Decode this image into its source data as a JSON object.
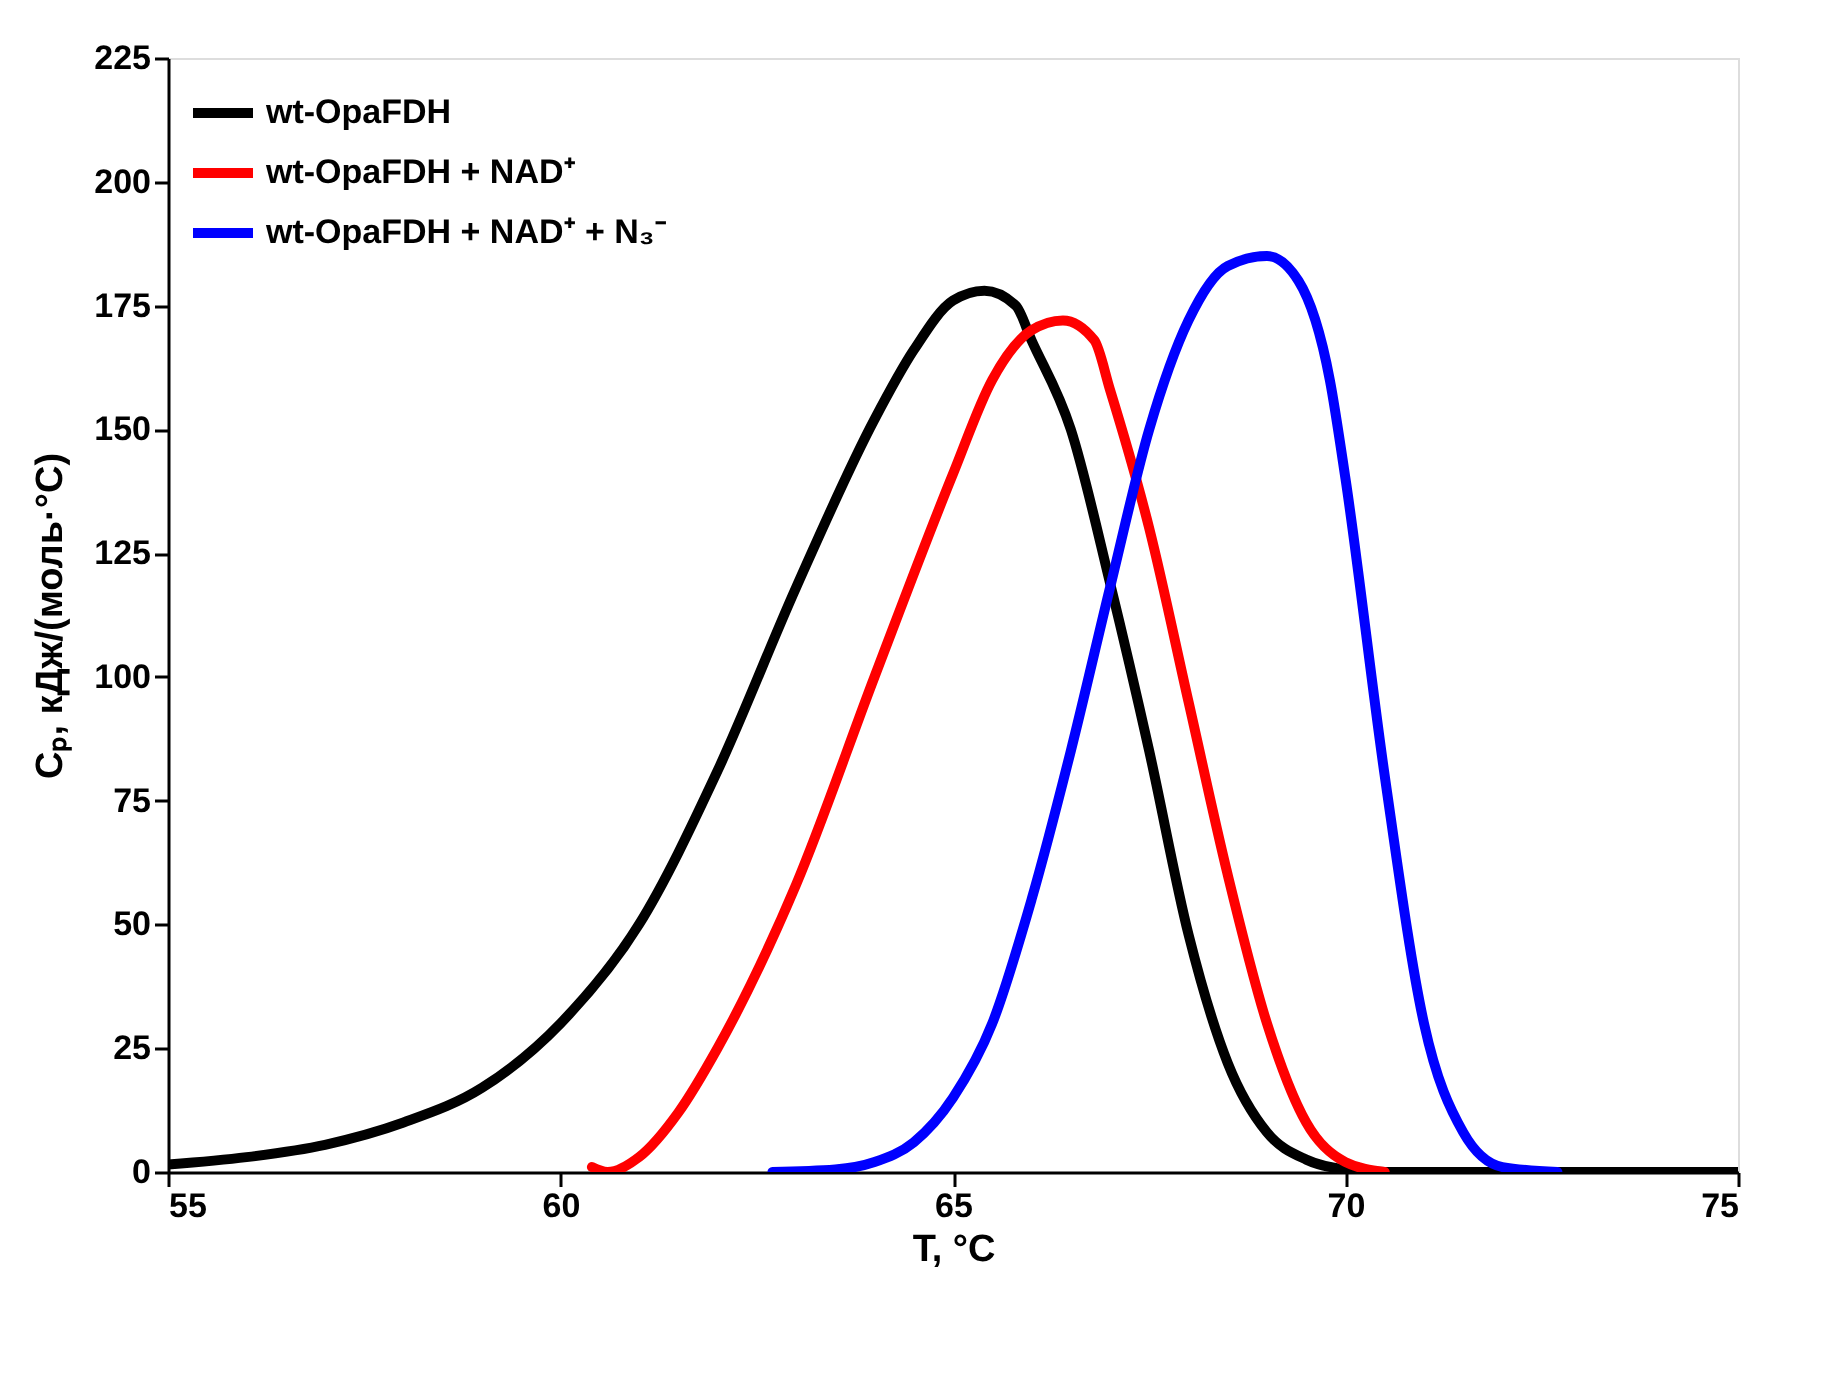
{
  "chart_data": {
    "type": "line",
    "xlabel": "T, °C",
    "ylabel": "Cₚ, кДж/(моль·°C)",
    "xlim": [
      55,
      75
    ],
    "ylim": [
      0,
      225
    ],
    "xticks": [
      55,
      60,
      65,
      70,
      75
    ],
    "yticks": [
      0,
      25,
      50,
      75,
      100,
      125,
      150,
      175,
      200,
      225
    ],
    "grid": false,
    "legend": "top left",
    "marker": "none",
    "line_style": "solid",
    "series": [
      {
        "name": "wt-OpaFDH",
        "color": "#000000",
        "x": [
          55,
          56,
          57,
          58,
          59,
          60,
          61,
          62,
          63,
          64,
          64.5,
          65,
          65.4,
          65.8,
          66,
          66.5,
          67,
          67.5,
          68,
          68.5,
          69,
          69.5,
          70,
          70.5,
          72,
          75
        ],
        "values": [
          1.5,
          3,
          5.5,
          10,
          17,
          30,
          50,
          81,
          118,
          152,
          166,
          176,
          178,
          175,
          168,
          150,
          119,
          85,
          48,
          22,
          8,
          2.5,
          0.5,
          0,
          0,
          0
        ]
      },
      {
        "name": "wt-OpaFDH + NAD⁺",
        "color": "#ff0000",
        "x": [
          60.4,
          60.6,
          61,
          61.5,
          62,
          63,
          64,
          65,
          65.5,
          66,
          66.4,
          66.8,
          67,
          67.5,
          68,
          68.5,
          69,
          69.5,
          70,
          70.5
        ],
        "values": [
          1,
          0,
          3,
          12,
          25,
          58,
          100,
          141,
          160,
          170,
          172,
          168,
          158,
          130,
          95,
          60,
          30,
          10,
          2,
          0
        ]
      },
      {
        "name": "wt-OpaFDH + NAD⁺ + N₃⁻",
        "color": "#0000ff",
        "x": [
          62.7,
          63.5,
          64,
          64.5,
          65,
          65.5,
          66,
          66.5,
          67,
          67.5,
          68,
          68.5,
          69,
          69.4,
          69.8,
          70,
          70.5,
          71,
          71.5,
          72,
          72.7
        ],
        "values": [
          0,
          0.5,
          2,
          6,
          15,
          30,
          55,
          85,
          118,
          150,
          172,
          183,
          185,
          180,
          160,
          140,
          80,
          30,
          8,
          1,
          0
        ]
      }
    ]
  }
}
